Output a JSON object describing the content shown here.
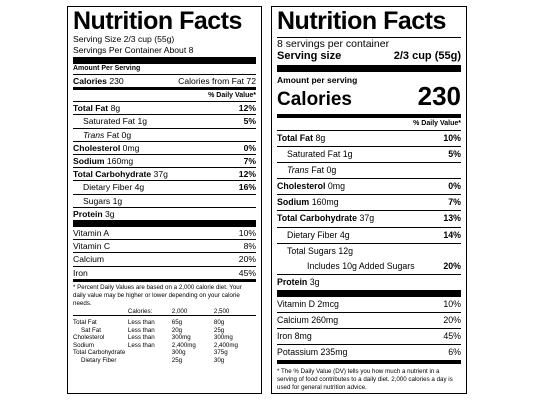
{
  "old_label": {
    "title": "Nutrition Facts",
    "serving_size": "Serving Size 2/3 cup (55g)",
    "servings_per_container": "Servings Per Container About 8",
    "amount_per_serving": "Amount Per Serving",
    "calories_label": "Calories",
    "calories_value": "230",
    "calories_from_fat": "Calories from Fat 72",
    "dv_header": "% Daily Value*",
    "nutrients": [
      {
        "name": "Total Fat",
        "amount": "8g",
        "dv": "12%"
      },
      {
        "name": "Saturated Fat",
        "amount": "1g",
        "dv": "5%"
      },
      {
        "name": "Trans",
        "amount": "Fat 0g",
        "dv": ""
      },
      {
        "name": "Cholesterol",
        "amount": "0mg",
        "dv": "0%"
      },
      {
        "name": "Sodium",
        "amount": "160mg",
        "dv": "7%"
      },
      {
        "name": "Total Carbohydrate",
        "amount": "37g",
        "dv": "12%"
      },
      {
        "name": "Dietary Fiber",
        "amount": "4g",
        "dv": "16%"
      },
      {
        "name": "Sugars",
        "amount": "1g",
        "dv": ""
      },
      {
        "name": "Protein",
        "amount": "3g",
        "dv": ""
      }
    ],
    "vitamins": [
      {
        "name": "Vitamin A",
        "dv": "10%"
      },
      {
        "name": "Vitamin C",
        "dv": "8%"
      },
      {
        "name": "Calcium",
        "dv": "20%"
      },
      {
        "name": "Iron",
        "dv": "45%"
      }
    ],
    "footnote": "* Percent Daily Values are based on a 2,000 calorie diet. Your daily value may be higher or lower depending on your calorie needs.",
    "table": {
      "header": [
        "",
        "Calories:",
        "2,000",
        "2,500"
      ],
      "rows": [
        [
          "Total Fat",
          "Less than",
          "65g",
          "80g"
        ],
        [
          "Sat Fat",
          "Less than",
          "20g",
          "25g"
        ],
        [
          "Cholesterol",
          "Less than",
          "300mg",
          "300mg"
        ],
        [
          "Sodium",
          "Less than",
          "2,400mg",
          "2,400mg"
        ],
        [
          "Total Carbohydrate",
          "",
          "300g",
          "375g"
        ],
        [
          "Dietary Fiber",
          "",
          "25g",
          "30g"
        ]
      ]
    }
  },
  "new_label": {
    "title": "Nutrition Facts",
    "servings_per_container": "8 servings per container",
    "serving_size_label": "Serving size",
    "serving_size_value": "2/3 cup (55g)",
    "amount_per_serving": "Amount per serving",
    "calories_label": "Calories",
    "calories_value": "230",
    "dv_header": "% Daily Value*",
    "nutrients": [
      {
        "name": "Total Fat",
        "amount": "8g",
        "dv": "10%"
      },
      {
        "name": "Saturated Fat",
        "amount": "1g",
        "dv": "5%"
      },
      {
        "name": "Trans",
        "amount": "Fat 0g",
        "dv": ""
      },
      {
        "name": "Cholesterol",
        "amount": "0mg",
        "dv": "0%"
      },
      {
        "name": "Sodium",
        "amount": "160mg",
        "dv": "7%"
      },
      {
        "name": "Total Carbohydrate",
        "amount": "37g",
        "dv": "13%"
      },
      {
        "name": "Dietary Fiber",
        "amount": "4g",
        "dv": "14%"
      },
      {
        "name": "Total Sugars",
        "amount": "12g",
        "dv": ""
      },
      {
        "name": "Includes 10g Added Sugars",
        "amount": "",
        "dv": "20%"
      },
      {
        "name": "Protein",
        "amount": "3g",
        "dv": ""
      }
    ],
    "vitamins": [
      {
        "name": "Vitamin D 2mcg",
        "dv": "10%"
      },
      {
        "name": "Calcium 260mg",
        "dv": "20%"
      },
      {
        "name": "Iron 8mg",
        "dv": "45%"
      },
      {
        "name": "Potassium 235mg",
        "dv": "6%"
      }
    ],
    "footnote": "* The % Daily Value (DV) tells you how much a nutrient in a serving of food contributes to a daily diet. 2,000 calories a day is used for general nutrition advice."
  }
}
